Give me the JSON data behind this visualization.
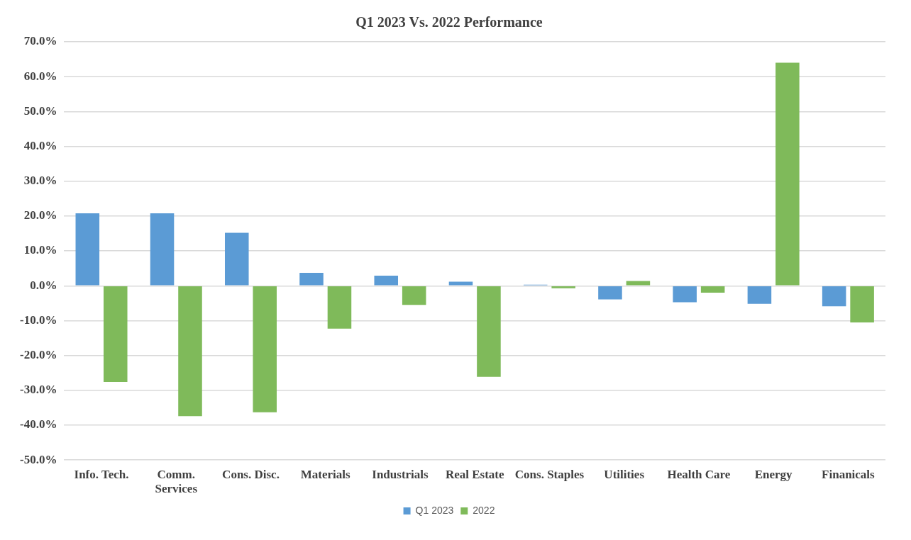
{
  "chart_data": {
    "type": "bar",
    "title": "Q1 2023 Vs. 2022 Performance",
    "categories": [
      "Info. Tech.",
      "Comm. Services",
      "Cons. Disc.",
      "Materials",
      "Industrials",
      "Real Estate",
      "Cons. Staples",
      "Utilities",
      "Health Care",
      "Energy",
      "Finanicals"
    ],
    "series": [
      {
        "name": "Q1 2023",
        "color": "#5b9bd5",
        "values": [
          20.8,
          20.8,
          15.2,
          3.7,
          2.9,
          1.2,
          0.3,
          -3.9,
          -4.7,
          -5.2,
          -5.9
        ]
      },
      {
        "name": "2022",
        "color": "#7fba5a",
        "values": [
          -27.6,
          -37.4,
          -36.3,
          -12.3,
          -5.5,
          -26.1,
          -0.7,
          1.4,
          -2.0,
          64.0,
          -10.5
        ]
      }
    ],
    "ylim": [
      -50,
      70
    ],
    "yticks": [
      {
        "value": -50,
        "label": "-50.0%"
      },
      {
        "value": -40,
        "label": "-40.0%"
      },
      {
        "value": -30,
        "label": "-30.0%"
      },
      {
        "value": -20,
        "label": "-20.0%"
      },
      {
        "value": -10,
        "label": "-10.0%"
      },
      {
        "value": 0,
        "label": "0.0%"
      },
      {
        "value": 10,
        "label": "10.0%"
      },
      {
        "value": 20,
        "label": "20.0%"
      },
      {
        "value": 30,
        "label": "30.0%"
      },
      {
        "value": 40,
        "label": "40.0%"
      },
      {
        "value": 50,
        "label": "50.0%"
      },
      {
        "value": 60,
        "label": "60.0%"
      },
      {
        "value": 70,
        "label": "70.0%"
      }
    ],
    "grid": "y",
    "legend": "bottom"
  }
}
